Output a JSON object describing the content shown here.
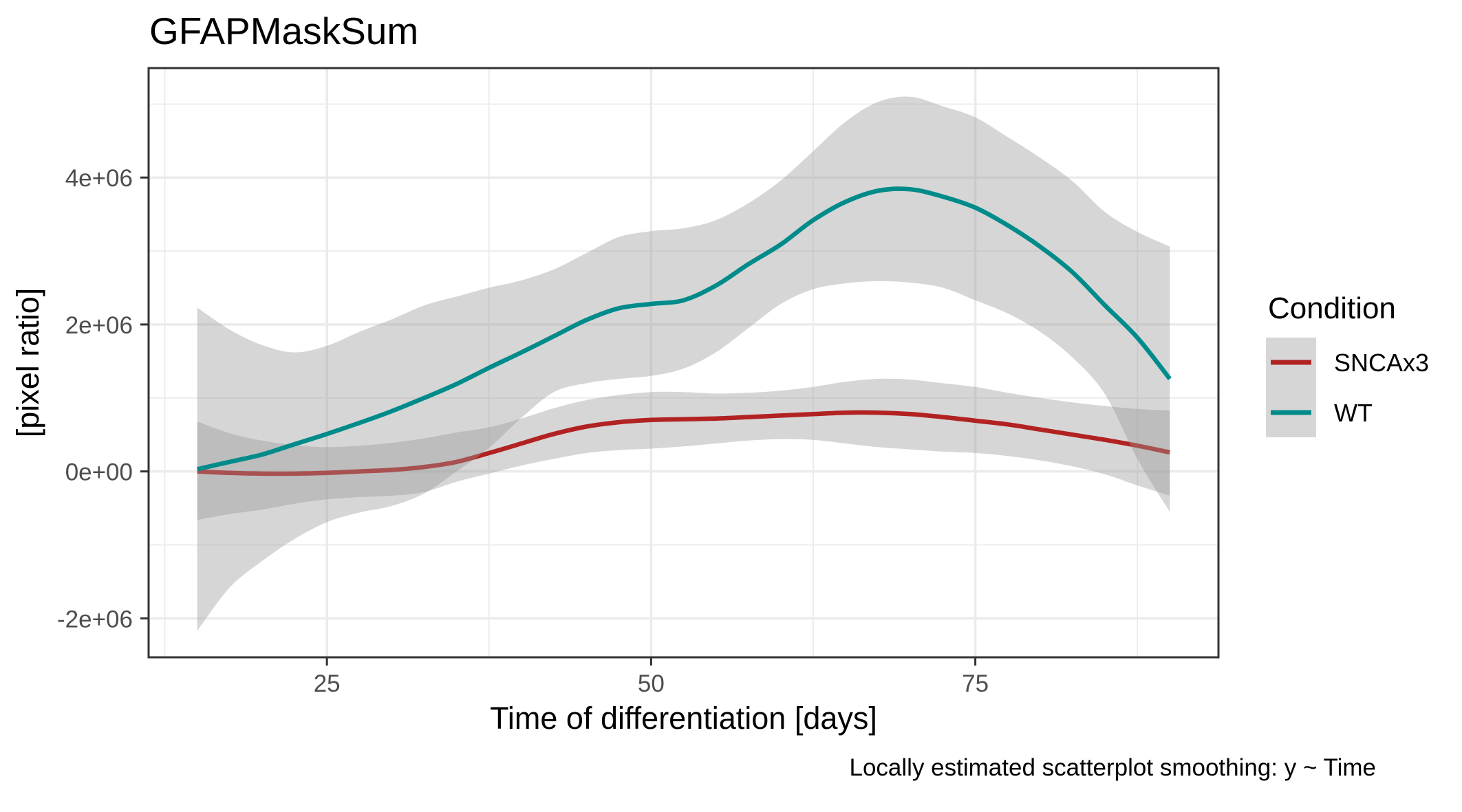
{
  "chart_data": {
    "type": "line",
    "title": "GFAPMaskSum",
    "xlabel": "Time of differentiation [days]",
    "ylabel": "[pixel ratio]",
    "caption": "Locally estimated scatterplot smoothing: y ~ Time",
    "xlim": [
      11.25,
      93.75
    ],
    "ylim": [
      -2530000,
      5490000
    ],
    "grid": true,
    "x_ticks": {
      "values": [
        25,
        50,
        75
      ],
      "labels": [
        "25",
        "50",
        "75"
      ],
      "minor": [
        12.5,
        37.5,
        62.5,
        87.5
      ]
    },
    "y_ticks": {
      "values": [
        -2000000,
        0,
        2000000,
        4000000
      ],
      "labels": [
        "-2e+06",
        "0e+00",
        "2e+06",
        "4e+06"
      ],
      "minor": [
        -1000000,
        1000000,
        3000000,
        5000000
      ]
    },
    "legend": {
      "title": "Condition",
      "position": "right"
    },
    "ribbon_color": "#999999",
    "x": [
      15,
      17.5,
      20,
      22.5,
      25,
      27.5,
      30,
      32.5,
      35,
      37.5,
      40,
      42.5,
      45,
      47.5,
      50,
      52.5,
      55,
      57.5,
      60,
      62.5,
      65,
      67.5,
      70,
      72.5,
      75,
      77.5,
      80,
      82.5,
      85,
      87.5,
      90
    ],
    "series": [
      {
        "name": "SNCAx3",
        "color": "#B22222",
        "values": [
          0,
          -20000,
          -30000,
          -30000,
          -20000,
          0,
          20000,
          60000,
          130000,
          250000,
          380000,
          510000,
          610000,
          670000,
          700000,
          710000,
          720000,
          740000,
          760000,
          780000,
          800000,
          800000,
          780000,
          740000,
          690000,
          640000,
          570000,
          500000,
          430000,
          350000,
          260000
        ],
        "ci_lower": [
          -660000,
          -580000,
          -520000,
          -440000,
          -380000,
          -350000,
          -330000,
          -280000,
          -140000,
          -30000,
          80000,
          170000,
          250000,
          290000,
          310000,
          340000,
          380000,
          420000,
          440000,
          430000,
          380000,
          330000,
          300000,
          270000,
          250000,
          210000,
          150000,
          70000,
          -40000,
          -190000,
          -330000
        ],
        "ci_upper": [
          680000,
          520000,
          420000,
          360000,
          330000,
          350000,
          390000,
          450000,
          530000,
          600000,
          720000,
          860000,
          970000,
          1040000,
          1080000,
          1080000,
          1060000,
          1070000,
          1100000,
          1150000,
          1220000,
          1260000,
          1250000,
          1200000,
          1150000,
          1070000,
          1000000,
          940000,
          890000,
          850000,
          830000
        ]
      },
      {
        "name": "WT",
        "color": "#008B8B",
        "values": [
          30000,
          130000,
          230000,
          370000,
          510000,
          660000,
          820000,
          1000000,
          1190000,
          1410000,
          1620000,
          1840000,
          2060000,
          2220000,
          2280000,
          2330000,
          2530000,
          2820000,
          3090000,
          3420000,
          3670000,
          3820000,
          3840000,
          3740000,
          3590000,
          3350000,
          3060000,
          2710000,
          2260000,
          1820000,
          1260000
        ],
        "ci_lower": [
          -2170000,
          -1580000,
          -1220000,
          -920000,
          -690000,
          -560000,
          -470000,
          -300000,
          0,
          320000,
          730000,
          1080000,
          1200000,
          1260000,
          1300000,
          1400000,
          1620000,
          1950000,
          2280000,
          2480000,
          2560000,
          2590000,
          2570000,
          2500000,
          2330000,
          2150000,
          1900000,
          1550000,
          1050000,
          170000,
          -550000
        ],
        "ci_upper": [
          2230000,
          1930000,
          1720000,
          1620000,
          1710000,
          1900000,
          2070000,
          2260000,
          2380000,
          2500000,
          2600000,
          2750000,
          2970000,
          3190000,
          3270000,
          3310000,
          3420000,
          3650000,
          3960000,
          4360000,
          4760000,
          5030000,
          5100000,
          4970000,
          4820000,
          4550000,
          4270000,
          3950000,
          3530000,
          3260000,
          3060000
        ]
      }
    ]
  }
}
